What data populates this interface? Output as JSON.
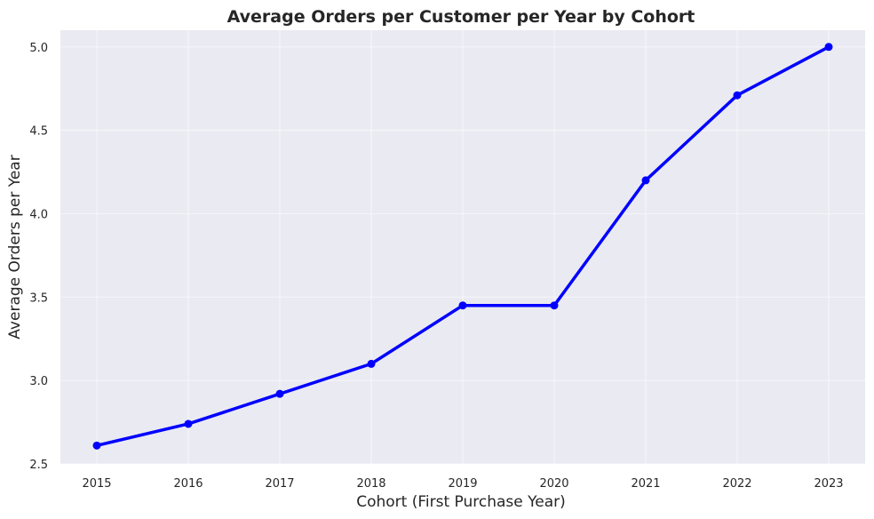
{
  "chart_data": {
    "type": "line",
    "title": "Average Orders per Customer per Year by Cohort",
    "xlabel": "Cohort (First Purchase Year)",
    "ylabel": "Average Orders per Year",
    "categories": [
      "2015",
      "2016",
      "2017",
      "2018",
      "2019",
      "2020",
      "2021",
      "2022",
      "2023"
    ],
    "series": [
      {
        "values": [
          2.61,
          2.74,
          2.92,
          3.1,
          3.45,
          3.45,
          4.2,
          4.71,
          5.0
        ]
      }
    ],
    "ylim": [
      2.5,
      5.1
    ],
    "yticks": [
      "2.5",
      "3.0",
      "3.5",
      "4.0",
      "4.5",
      "5.0"
    ],
    "grid": true,
    "legend": "none",
    "colors": {
      "line": "#0000ff",
      "plot_background": "#eaeaf2",
      "grid": "#ffffff"
    }
  }
}
